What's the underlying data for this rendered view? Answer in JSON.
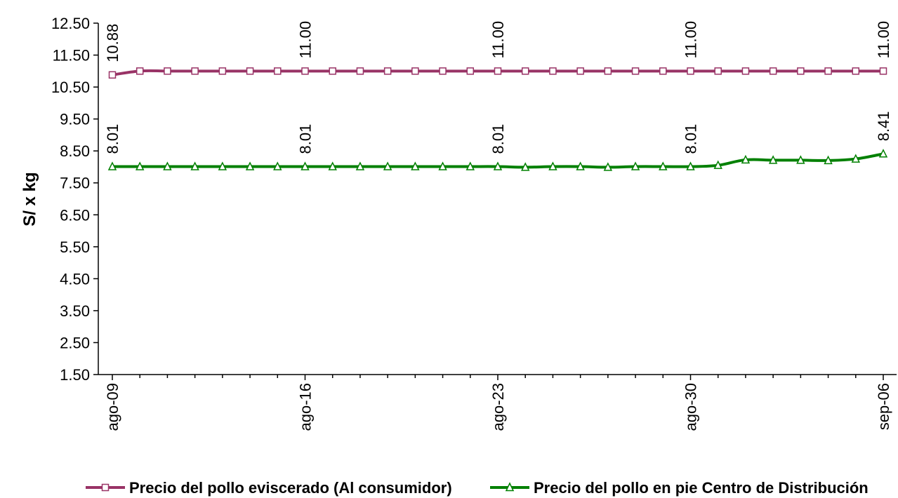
{
  "chart_data": {
    "type": "line",
    "title": "",
    "xlabel": "",
    "ylabel": "S/ x kg",
    "ylim": [
      1.5,
      12.5
    ],
    "yticks": [
      "12.50",
      "11.50",
      "10.50",
      "9.50",
      "8.50",
      "7.50",
      "6.50",
      "5.50",
      "4.50",
      "3.50",
      "2.50",
      "1.50"
    ],
    "yticks_values": [
      12.5,
      11.5,
      10.5,
      9.5,
      8.5,
      7.5,
      6.5,
      5.5,
      4.5,
      3.5,
      2.5,
      1.5
    ],
    "x": [
      "ago-09",
      "ago-10",
      "ago-11",
      "ago-12",
      "ago-13",
      "ago-14",
      "ago-15",
      "ago-16",
      "ago-17",
      "ago-18",
      "ago-19",
      "ago-20",
      "ago-21",
      "ago-22",
      "ago-23",
      "ago-24",
      "ago-25",
      "ago-26",
      "ago-27",
      "ago-28",
      "ago-29",
      "ago-30",
      "ago-31",
      "sep-01",
      "sep-02",
      "sep-03",
      "sep-04",
      "sep-05",
      "sep-06"
    ],
    "x_tick_labels": [
      {
        "index": 0,
        "label": "ago-09"
      },
      {
        "index": 7,
        "label": "ago-16"
      },
      {
        "index": 14,
        "label": "ago-23"
      },
      {
        "index": 21,
        "label": "ago-30"
      },
      {
        "index": 28,
        "label": "sep-06"
      }
    ],
    "grid": false,
    "legend_position": "bottom",
    "series": [
      {
        "name": "Precio del pollo eviscerado (Al consumidor)",
        "color": "#993366",
        "marker": "square",
        "values": [
          10.88,
          11.0,
          11.0,
          11.0,
          11.0,
          11.0,
          11.0,
          11.0,
          11.0,
          11.0,
          11.0,
          11.0,
          11.0,
          11.0,
          11.0,
          11.0,
          11.0,
          11.0,
          11.0,
          11.0,
          11.0,
          11.0,
          11.0,
          11.0,
          11.0,
          11.0,
          11.0,
          11.0,
          11.0
        ],
        "data_labels": [
          {
            "index": 0,
            "text": "10.88"
          },
          {
            "index": 7,
            "text": "11.00"
          },
          {
            "index": 14,
            "text": "11.00"
          },
          {
            "index": 21,
            "text": "11.00"
          },
          {
            "index": 28,
            "text": "11.00"
          }
        ]
      },
      {
        "name": "Precio del pollo en pie Centro de Distribución",
        "color": "#008000",
        "marker": "triangle",
        "values": [
          8.01,
          8.01,
          8.01,
          8.01,
          8.01,
          8.01,
          8.01,
          8.01,
          8.01,
          8.01,
          8.01,
          8.01,
          8.01,
          8.01,
          8.01,
          7.99,
          8.01,
          8.01,
          7.99,
          8.01,
          8.01,
          8.01,
          8.05,
          8.22,
          8.21,
          8.21,
          8.2,
          8.25,
          8.41
        ],
        "data_labels": [
          {
            "index": 0,
            "text": "8.01"
          },
          {
            "index": 7,
            "text": "8.01"
          },
          {
            "index": 14,
            "text": "8.01"
          },
          {
            "index": 21,
            "text": "8.01"
          },
          {
            "index": 28,
            "text": "8.41"
          }
        ]
      }
    ]
  }
}
